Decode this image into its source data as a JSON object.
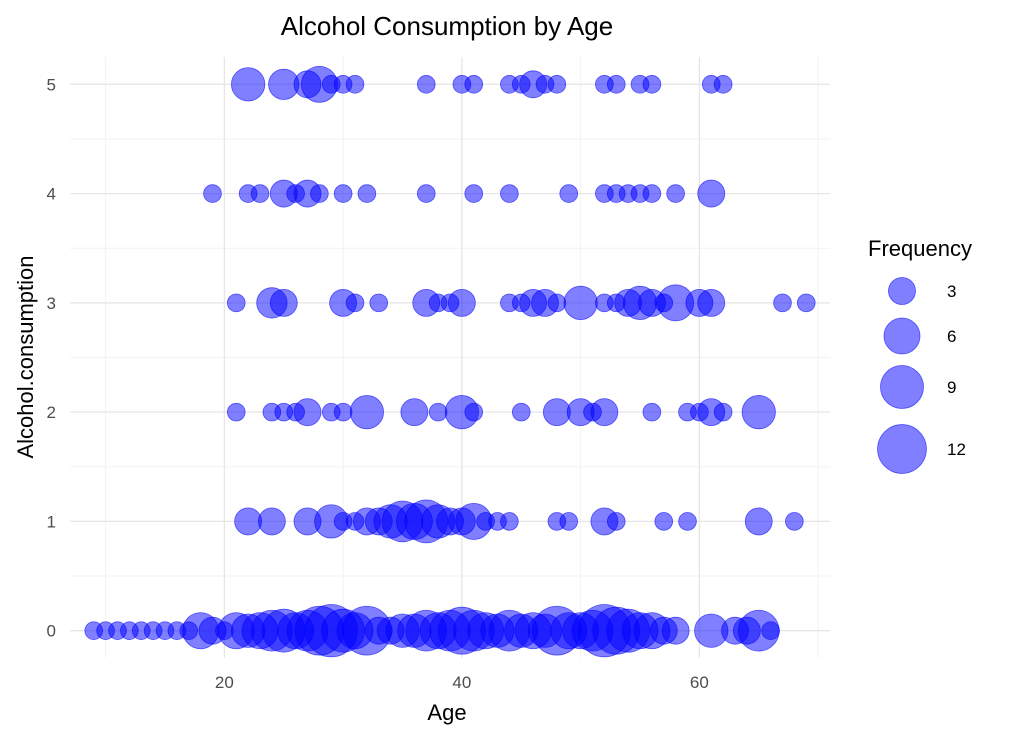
{
  "chart_data": {
    "type": "scatter",
    "title": "Alcohol Consumption by Age",
    "xlabel": "Age",
    "ylabel": "Alcohol.consumption",
    "xlim": [
      7,
      71
    ],
    "ylim": [
      -0.25,
      5.25
    ],
    "x_ticks": [
      20,
      40,
      60
    ],
    "x_tick_labels": [
      "20",
      "40",
      "60"
    ],
    "y_ticks": [
      0,
      1,
      2,
      3,
      4,
      5
    ],
    "y_tick_labels": [
      "0",
      "1",
      "2",
      "3",
      "4",
      "5"
    ],
    "grid": true,
    "point_color": "#0000FF",
    "point_opacity": 0.5,
    "legend": {
      "title": "Frequency",
      "position": "right",
      "entries": [
        {
          "label": "3",
          "value": 3
        },
        {
          "label": "6",
          "value": 6
        },
        {
          "label": "9",
          "value": 9
        },
        {
          "label": "12",
          "value": 12
        }
      ]
    },
    "points": [
      {
        "x": 22,
        "y": 5,
        "size": 5
      },
      {
        "x": 25,
        "y": 5,
        "size": 4
      },
      {
        "x": 27,
        "y": 5,
        "size": 3
      },
      {
        "x": 28,
        "y": 5,
        "size": 6
      },
      {
        "x": 29,
        "y": 5,
        "size": 1
      },
      {
        "x": 30,
        "y": 5,
        "size": 1
      },
      {
        "x": 31,
        "y": 5,
        "size": 1
      },
      {
        "x": 37,
        "y": 5,
        "size": 1
      },
      {
        "x": 40,
        "y": 5,
        "size": 1
      },
      {
        "x": 41,
        "y": 5,
        "size": 1
      },
      {
        "x": 44,
        "y": 5,
        "size": 1
      },
      {
        "x": 45,
        "y": 5,
        "size": 1
      },
      {
        "x": 46,
        "y": 5,
        "size": 3
      },
      {
        "x": 47,
        "y": 5,
        "size": 1
      },
      {
        "x": 48,
        "y": 5,
        "size": 1
      },
      {
        "x": 52,
        "y": 5,
        "size": 1
      },
      {
        "x": 53,
        "y": 5,
        "size": 1
      },
      {
        "x": 55,
        "y": 5,
        "size": 1
      },
      {
        "x": 56,
        "y": 5,
        "size": 1
      },
      {
        "x": 61,
        "y": 5,
        "size": 1
      },
      {
        "x": 62,
        "y": 5,
        "size": 1
      },
      {
        "x": 19,
        "y": 4,
        "size": 1
      },
      {
        "x": 22,
        "y": 4,
        "size": 1
      },
      {
        "x": 23,
        "y": 4,
        "size": 1
      },
      {
        "x": 25,
        "y": 4,
        "size": 3
      },
      {
        "x": 26,
        "y": 4,
        "size": 1
      },
      {
        "x": 27,
        "y": 4,
        "size": 3
      },
      {
        "x": 28,
        "y": 4,
        "size": 1
      },
      {
        "x": 30,
        "y": 4,
        "size": 1
      },
      {
        "x": 32,
        "y": 4,
        "size": 1
      },
      {
        "x": 37,
        "y": 4,
        "size": 1
      },
      {
        "x": 41,
        "y": 4,
        "size": 1
      },
      {
        "x": 44,
        "y": 4,
        "size": 1
      },
      {
        "x": 49,
        "y": 4,
        "size": 1
      },
      {
        "x": 52,
        "y": 4,
        "size": 1
      },
      {
        "x": 53,
        "y": 4,
        "size": 1
      },
      {
        "x": 54,
        "y": 4,
        "size": 1
      },
      {
        "x": 55,
        "y": 4,
        "size": 1
      },
      {
        "x": 56,
        "y": 4,
        "size": 1
      },
      {
        "x": 58,
        "y": 4,
        "size": 1
      },
      {
        "x": 61,
        "y": 4,
        "size": 3
      },
      {
        "x": 21,
        "y": 3,
        "size": 1
      },
      {
        "x": 24,
        "y": 3,
        "size": 4
      },
      {
        "x": 25,
        "y": 3,
        "size": 3
      },
      {
        "x": 30,
        "y": 3,
        "size": 3
      },
      {
        "x": 31,
        "y": 3,
        "size": 1
      },
      {
        "x": 33,
        "y": 3,
        "size": 1
      },
      {
        "x": 37,
        "y": 3,
        "size": 3
      },
      {
        "x": 38,
        "y": 3,
        "size": 1
      },
      {
        "x": 39,
        "y": 3,
        "size": 1
      },
      {
        "x": 40,
        "y": 3,
        "size": 3
      },
      {
        "x": 44,
        "y": 3,
        "size": 1
      },
      {
        "x": 45,
        "y": 3,
        "size": 1
      },
      {
        "x": 46,
        "y": 3,
        "size": 3
      },
      {
        "x": 47,
        "y": 3,
        "size": 3
      },
      {
        "x": 48,
        "y": 3,
        "size": 1
      },
      {
        "x": 50,
        "y": 3,
        "size": 5
      },
      {
        "x": 52,
        "y": 3,
        "size": 1
      },
      {
        "x": 53,
        "y": 3,
        "size": 1
      },
      {
        "x": 54,
        "y": 3,
        "size": 3
      },
      {
        "x": 55,
        "y": 3,
        "size": 5
      },
      {
        "x": 56,
        "y": 3,
        "size": 3
      },
      {
        "x": 57,
        "y": 3,
        "size": 1
      },
      {
        "x": 58,
        "y": 3,
        "size": 6
      },
      {
        "x": 60,
        "y": 3,
        "size": 3
      },
      {
        "x": 61,
        "y": 3,
        "size": 3
      },
      {
        "x": 67,
        "y": 3,
        "size": 1
      },
      {
        "x": 69,
        "y": 3,
        "size": 1
      },
      {
        "x": 21,
        "y": 2,
        "size": 1
      },
      {
        "x": 24,
        "y": 2,
        "size": 1
      },
      {
        "x": 25,
        "y": 2,
        "size": 1
      },
      {
        "x": 26,
        "y": 2,
        "size": 1
      },
      {
        "x": 27,
        "y": 2,
        "size": 3
      },
      {
        "x": 29,
        "y": 2,
        "size": 1
      },
      {
        "x": 30,
        "y": 2,
        "size": 1
      },
      {
        "x": 32,
        "y": 2,
        "size": 5
      },
      {
        "x": 36,
        "y": 2,
        "size": 3
      },
      {
        "x": 38,
        "y": 2,
        "size": 1
      },
      {
        "x": 40,
        "y": 2,
        "size": 5
      },
      {
        "x": 41,
        "y": 2,
        "size": 1
      },
      {
        "x": 45,
        "y": 2,
        "size": 1
      },
      {
        "x": 48,
        "y": 2,
        "size": 3
      },
      {
        "x": 50,
        "y": 2,
        "size": 3
      },
      {
        "x": 51,
        "y": 2,
        "size": 1
      },
      {
        "x": 52,
        "y": 2,
        "size": 3
      },
      {
        "x": 56,
        "y": 2,
        "size": 1
      },
      {
        "x": 59,
        "y": 2,
        "size": 1
      },
      {
        "x": 60,
        "y": 2,
        "size": 1
      },
      {
        "x": 61,
        "y": 2,
        "size": 3
      },
      {
        "x": 62,
        "y": 2,
        "size": 1
      },
      {
        "x": 65,
        "y": 2,
        "size": 5
      },
      {
        "x": 22,
        "y": 1,
        "size": 3
      },
      {
        "x": 24,
        "y": 1,
        "size": 3
      },
      {
        "x": 27,
        "y": 1,
        "size": 3
      },
      {
        "x": 29,
        "y": 1,
        "size": 5
      },
      {
        "x": 30,
        "y": 1,
        "size": 1
      },
      {
        "x": 31,
        "y": 1,
        "size": 1
      },
      {
        "x": 32,
        "y": 1,
        "size": 3
      },
      {
        "x": 33,
        "y": 1,
        "size": 3
      },
      {
        "x": 34,
        "y": 1,
        "size": 5
      },
      {
        "x": 35,
        "y": 1,
        "size": 8
      },
      {
        "x": 36,
        "y": 1,
        "size": 6
      },
      {
        "x": 37,
        "y": 1,
        "size": 9
      },
      {
        "x": 38,
        "y": 1,
        "size": 5
      },
      {
        "x": 39,
        "y": 1,
        "size": 3
      },
      {
        "x": 40,
        "y": 1,
        "size": 3
      },
      {
        "x": 41,
        "y": 1,
        "size": 6
      },
      {
        "x": 42,
        "y": 1,
        "size": 1
      },
      {
        "x": 43,
        "y": 1,
        "size": 1
      },
      {
        "x": 44,
        "y": 1,
        "size": 1
      },
      {
        "x": 48,
        "y": 1,
        "size": 1
      },
      {
        "x": 49,
        "y": 1,
        "size": 1
      },
      {
        "x": 52,
        "y": 1,
        "size": 3
      },
      {
        "x": 53,
        "y": 1,
        "size": 1
      },
      {
        "x": 57,
        "y": 1,
        "size": 1
      },
      {
        "x": 59,
        "y": 1,
        "size": 1
      },
      {
        "x": 65,
        "y": 1,
        "size": 3
      },
      {
        "x": 68,
        "y": 1,
        "size": 1
      },
      {
        "x": 9,
        "y": 0,
        "size": 1
      },
      {
        "x": 10,
        "y": 0,
        "size": 1
      },
      {
        "x": 11,
        "y": 0,
        "size": 1
      },
      {
        "x": 12,
        "y": 0,
        "size": 1
      },
      {
        "x": 13,
        "y": 0,
        "size": 1
      },
      {
        "x": 14,
        "y": 0,
        "size": 1
      },
      {
        "x": 15,
        "y": 0,
        "size": 1
      },
      {
        "x": 16,
        "y": 0,
        "size": 1
      },
      {
        "x": 17,
        "y": 0,
        "size": 1
      },
      {
        "x": 18,
        "y": 0,
        "size": 6
      },
      {
        "x": 19,
        "y": 0,
        "size": 3
      },
      {
        "x": 20,
        "y": 0,
        "size": 1
      },
      {
        "x": 21,
        "y": 0,
        "size": 6
      },
      {
        "x": 22,
        "y": 0,
        "size": 5
      },
      {
        "x": 23,
        "y": 0,
        "size": 6
      },
      {
        "x": 24,
        "y": 0,
        "size": 8
      },
      {
        "x": 25,
        "y": 0,
        "size": 9
      },
      {
        "x": 26,
        "y": 0,
        "size": 6
      },
      {
        "x": 27,
        "y": 0,
        "size": 8
      },
      {
        "x": 28,
        "y": 0,
        "size": 12
      },
      {
        "x": 29,
        "y": 0,
        "size": 14
      },
      {
        "x": 30,
        "y": 0,
        "size": 9
      },
      {
        "x": 31,
        "y": 0,
        "size": 6
      },
      {
        "x": 32,
        "y": 0,
        "size": 12
      },
      {
        "x": 33,
        "y": 0,
        "size": 3
      },
      {
        "x": 34,
        "y": 0,
        "size": 3
      },
      {
        "x": 35,
        "y": 0,
        "size": 5
      },
      {
        "x": 36,
        "y": 0,
        "size": 5
      },
      {
        "x": 37,
        "y": 0,
        "size": 8
      },
      {
        "x": 38,
        "y": 0,
        "size": 6
      },
      {
        "x": 39,
        "y": 0,
        "size": 8
      },
      {
        "x": 40,
        "y": 0,
        "size": 11
      },
      {
        "x": 41,
        "y": 0,
        "size": 8
      },
      {
        "x": 42,
        "y": 0,
        "size": 6
      },
      {
        "x": 43,
        "y": 0,
        "size": 5
      },
      {
        "x": 44,
        "y": 0,
        "size": 8
      },
      {
        "x": 45,
        "y": 0,
        "size": 5
      },
      {
        "x": 46,
        "y": 0,
        "size": 6
      },
      {
        "x": 47,
        "y": 0,
        "size": 5
      },
      {
        "x": 48,
        "y": 0,
        "size": 12
      },
      {
        "x": 49,
        "y": 0,
        "size": 6
      },
      {
        "x": 50,
        "y": 0,
        "size": 6
      },
      {
        "x": 51,
        "y": 0,
        "size": 8
      },
      {
        "x": 52,
        "y": 0,
        "size": 14
      },
      {
        "x": 53,
        "y": 0,
        "size": 11
      },
      {
        "x": 54,
        "y": 0,
        "size": 9
      },
      {
        "x": 55,
        "y": 0,
        "size": 6
      },
      {
        "x": 56,
        "y": 0,
        "size": 6
      },
      {
        "x": 57,
        "y": 0,
        "size": 3
      },
      {
        "x": 58,
        "y": 0,
        "size": 3
      },
      {
        "x": 61,
        "y": 0,
        "size": 5
      },
      {
        "x": 63,
        "y": 0,
        "size": 3
      },
      {
        "x": 64,
        "y": 0,
        "size": 3
      },
      {
        "x": 65,
        "y": 0,
        "size": 8
      },
      {
        "x": 66,
        "y": 0,
        "size": 1
      }
    ]
  }
}
